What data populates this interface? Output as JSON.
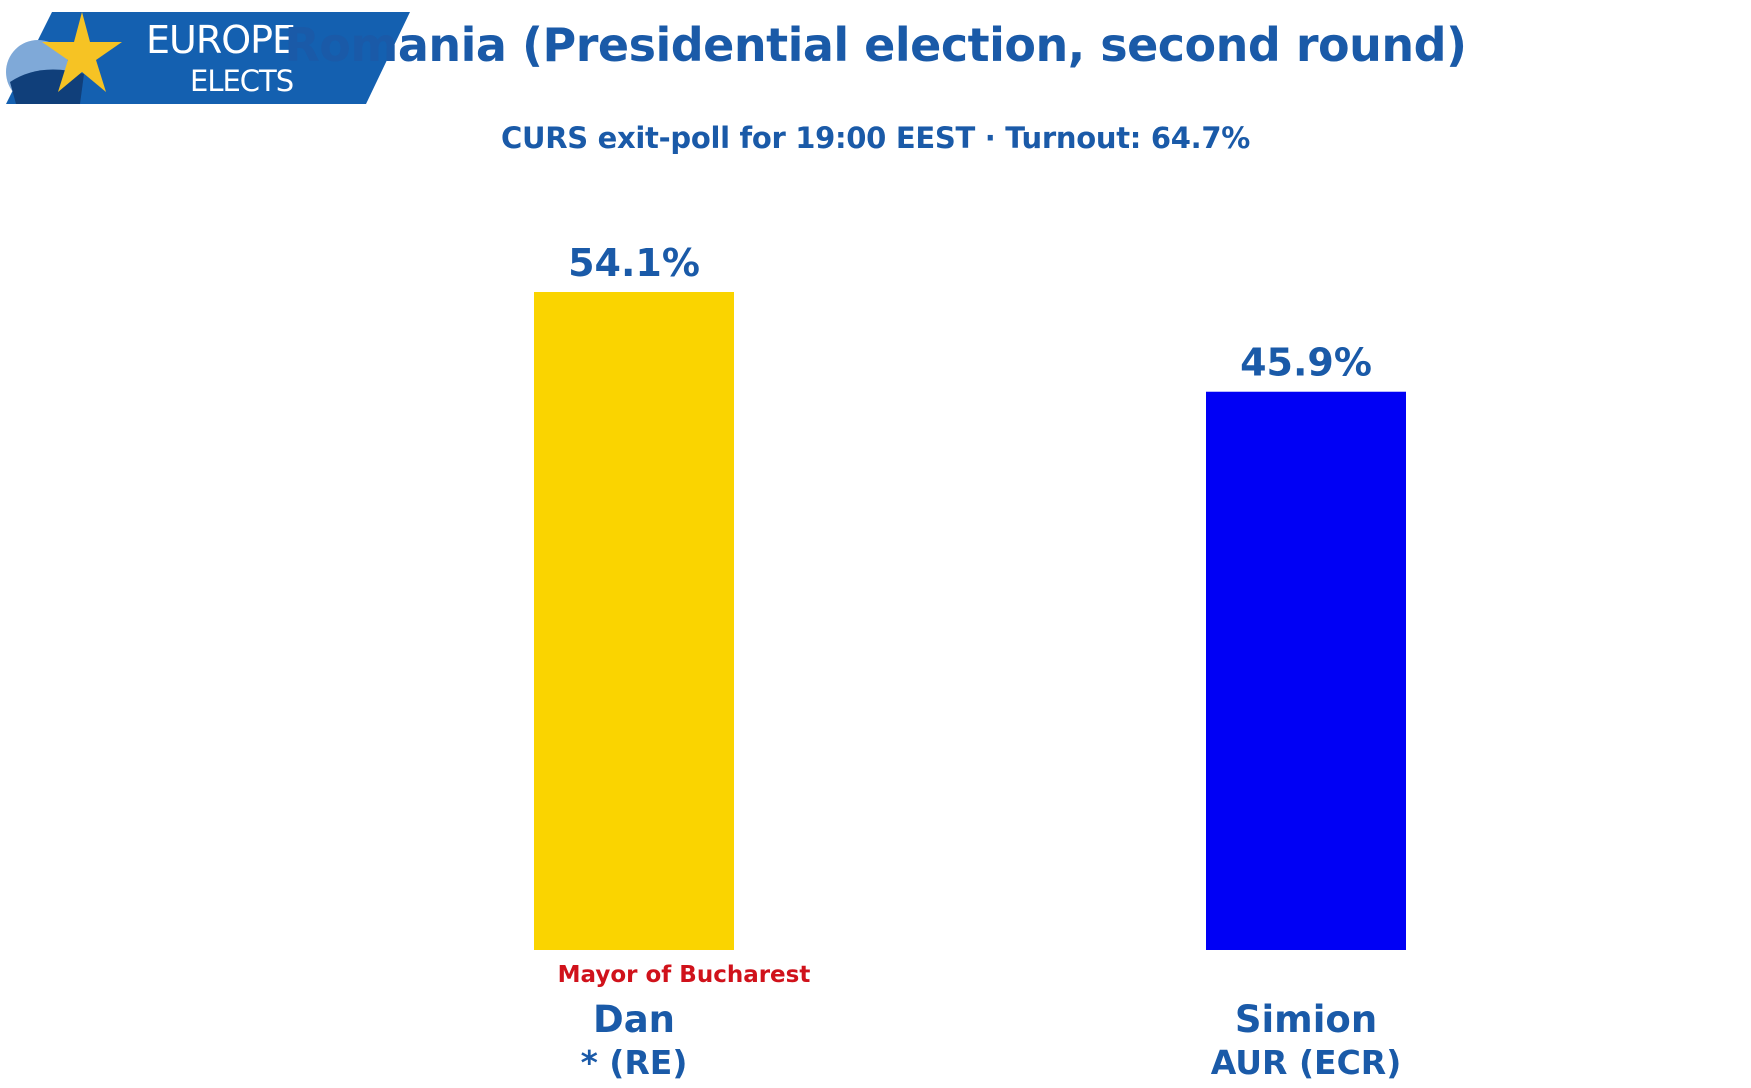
{
  "logo": {
    "line1": "EUROPE",
    "line2": "ELECTS",
    "colors": {
      "banner": "#1460b0",
      "star": "#f6c324",
      "light_blue": "#7fa9d8",
      "dark_blue": "#103f7a"
    }
  },
  "chart_data": {
    "type": "bar",
    "title": "Romania (Presidential election, second round)",
    "subtitle": "CURS exit-poll for 19:00 EEST · Turnout: 64.7%",
    "categories": [
      "Dan",
      "Simion"
    ],
    "party_labels": [
      "* (RE)",
      "AUR (ECR)"
    ],
    "annotations": [
      "Mayor of Bucharest",
      ""
    ],
    "values": [
      54.1,
      45.9
    ],
    "value_labels": [
      "54.1%",
      "45.9%"
    ],
    "colors": [
      "#fad400",
      "#0000f5"
    ],
    "ylim": [
      0,
      60
    ],
    "grid": false,
    "legend": "none"
  },
  "colors": {
    "text_blue": "#1a5aa8",
    "annotation_red": "#d0121b"
  }
}
